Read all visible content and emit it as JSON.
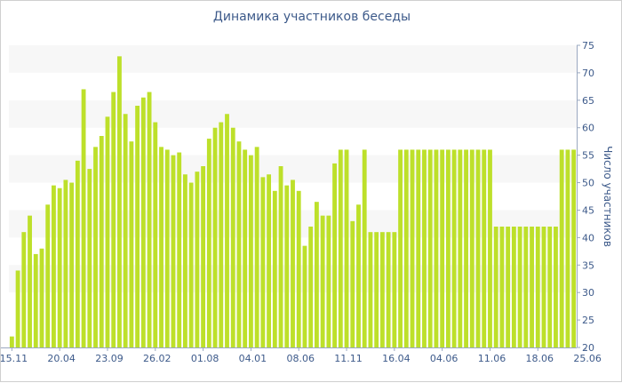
{
  "chart_data": {
    "type": "bar",
    "title": "Динамика участников беседы",
    "xlabel": "",
    "ylabel": "Число участников",
    "ylim": [
      20,
      75
    ],
    "y_ticks": [
      20,
      25,
      30,
      35,
      40,
      45,
      50,
      55,
      60,
      65,
      70,
      75
    ],
    "x_tick_labels": [
      {
        "label": "15.11",
        "index": 0
      },
      {
        "label": "20.04",
        "index": 8
      },
      {
        "label": "23.09",
        "index": 16
      },
      {
        "label": "26.02",
        "index": 24
      },
      {
        "label": "01.08",
        "index": 32
      },
      {
        "label": "04.01",
        "index": 40
      },
      {
        "label": "08.06",
        "index": 48
      },
      {
        "label": "11.11",
        "index": 56
      },
      {
        "label": "16.04",
        "index": 64
      },
      {
        "label": "04.06",
        "index": 72
      },
      {
        "label": "11.06",
        "index": 80
      },
      {
        "label": "18.06",
        "index": 88
      },
      {
        "label": "25.06",
        "index": 96
      }
    ],
    "bar_color": "#bde02a",
    "grid": "alternating horizontal bands",
    "axis_position": "right",
    "series": [
      {
        "values": [
          22,
          34,
          41,
          44,
          37,
          38,
          46,
          49.5,
          49,
          50.5,
          50,
          54,
          67,
          52.5,
          56.5,
          58.5,
          62,
          66.5,
          73,
          62.5,
          57.5,
          64,
          65.5,
          66.5,
          61,
          56.5,
          56,
          55,
          55.5,
          51.5,
          50,
          52,
          53,
          58,
          60,
          61,
          62.5,
          60,
          57.5,
          56,
          55,
          56.5,
          51,
          51.5,
          48.5,
          53,
          49.5,
          50.5,
          48.5,
          38.5,
          42,
          46.5,
          44,
          44,
          53.5,
          56,
          56,
          43,
          46,
          56,
          41,
          41,
          41,
          41,
          41,
          56,
          56,
          56,
          56,
          56,
          56,
          56,
          56,
          56,
          56,
          56,
          56,
          56,
          56,
          56,
          56,
          42,
          42,
          42,
          42,
          42,
          42,
          42,
          42,
          42,
          42,
          42,
          56,
          56,
          56
        ]
      }
    ]
  }
}
